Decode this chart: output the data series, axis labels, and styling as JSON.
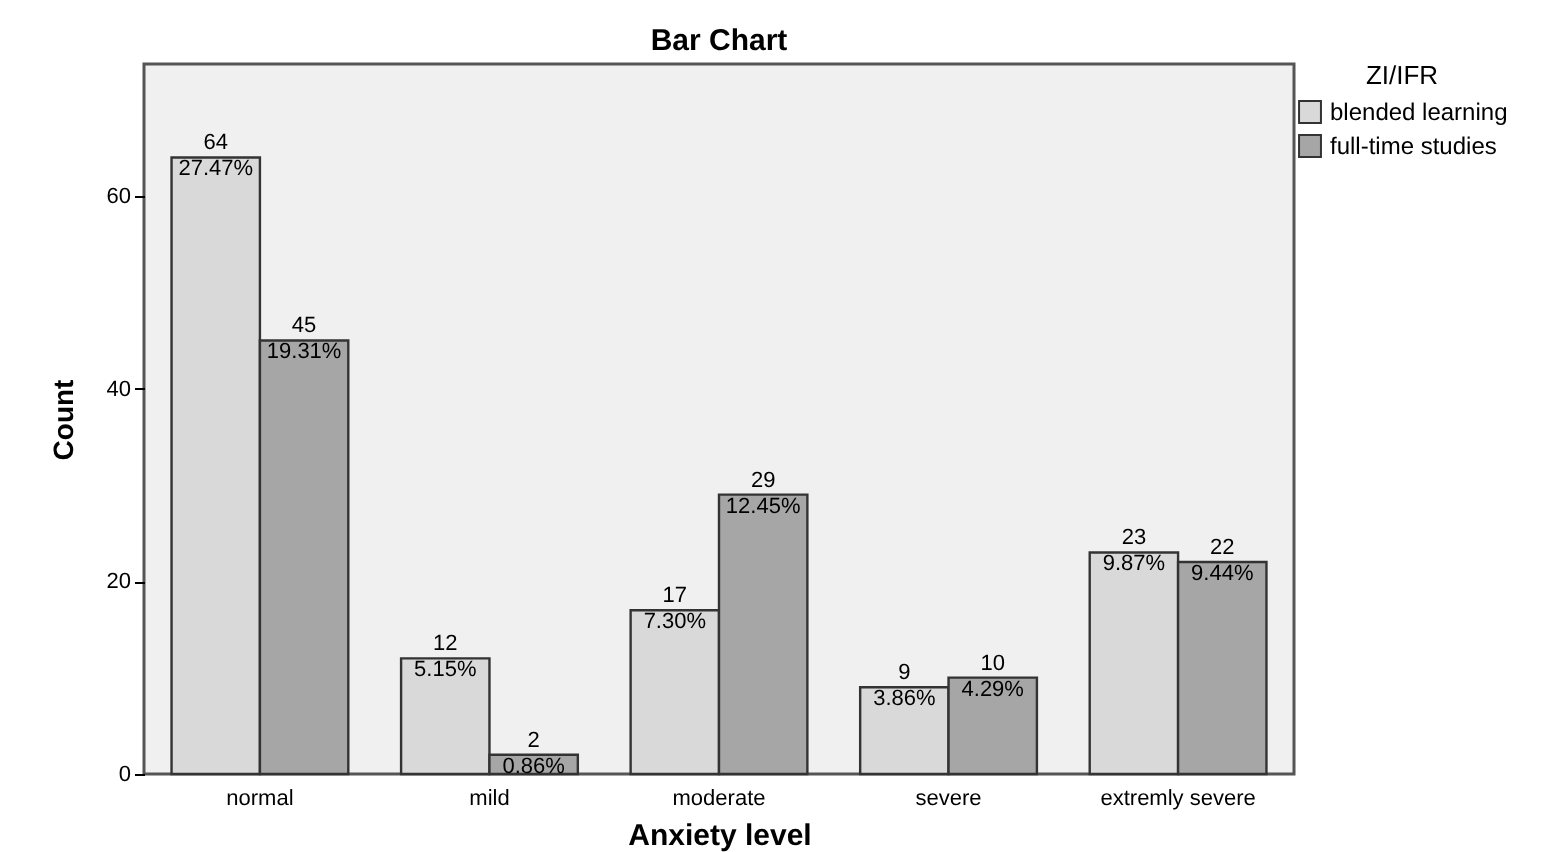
{
  "chart_data": {
    "type": "bar",
    "title": "Bar Chart",
    "xlabel": "Anxiety level",
    "ylabel": "Count",
    "legend_title": "ZI/IFR",
    "categories": [
      "normal",
      "mild",
      "moderate",
      "severe",
      "extremly severe"
    ],
    "series": [
      {
        "name": "blended learning",
        "color": "#d9d9d9",
        "values": [
          64,
          12,
          17,
          9,
          23
        ],
        "value_labels": [
          "64\n27.47%",
          "12\n5.15%",
          "17\n7.30%",
          "9\n3.86%",
          "23\n9.87%"
        ]
      },
      {
        "name": "full-time studies",
        "color": "#a6a6a6",
        "values": [
          45,
          2,
          29,
          10,
          22
        ],
        "value_labels": [
          "45\n19.31%",
          "2\n0.86%",
          "29\n12.45%",
          "10\n4.29%",
          "22\n9.44%"
        ]
      }
    ],
    "ylim": [
      0,
      73.7
    ],
    "yticks": [
      0,
      20,
      40,
      60
    ],
    "grid": false,
    "legend": "top right"
  }
}
